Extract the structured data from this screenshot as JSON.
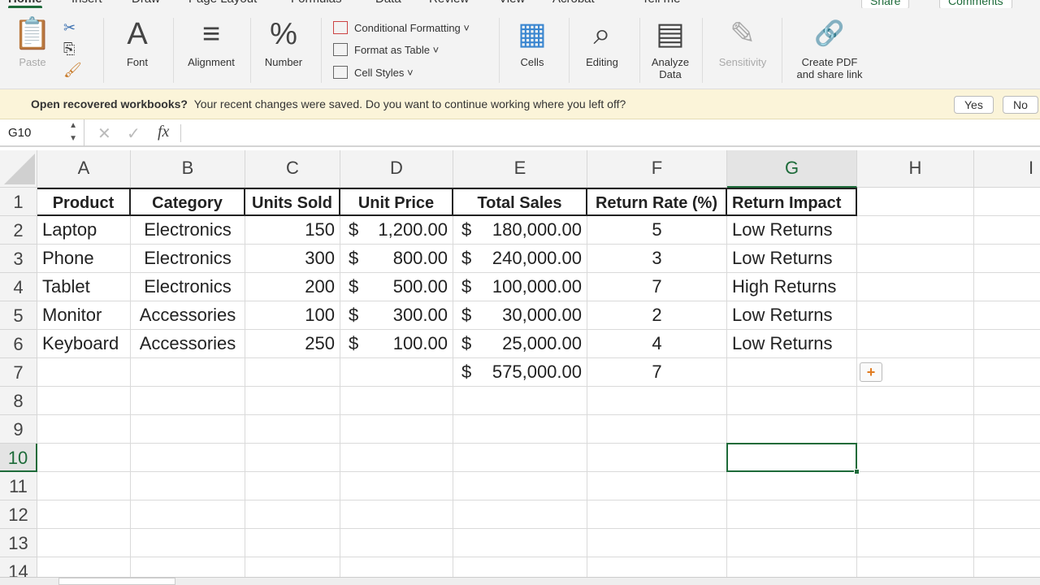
{
  "tabs": [
    "Home",
    "Insert",
    "Draw",
    "Page Layout",
    "Formulas",
    "Data",
    "Review",
    "View",
    "Acrobat",
    "Tell me"
  ],
  "share": "Share",
  "comments": "Comments",
  "ribbon": {
    "paste": "Paste",
    "font": "Font",
    "alignment": "Alignment",
    "number": "Number",
    "conditional_formatting": "Conditional Formatting",
    "format_as_table": "Format as Table",
    "cell_styles": "Cell Styles",
    "cells": "Cells",
    "editing": "Editing",
    "analyze_data": "Analyze\nData",
    "sensitivity": "Sensitivity",
    "create_pdf": "Create PDF\nand share link"
  },
  "notice": {
    "title": "Open recovered workbooks?",
    "text": "Your recent changes were saved. Do you want to continue working where you left off?",
    "yes": "Yes",
    "no": "No"
  },
  "namebox": "G10",
  "fx": "fx",
  "columns": [
    "A",
    "B",
    "C",
    "D",
    "E",
    "F",
    "G",
    "H",
    "I"
  ],
  "selected_cell": "G10",
  "rows": [
    [
      {
        "v": "Product",
        "b": 1,
        "a": "c"
      },
      {
        "v": "Category",
        "b": 1,
        "a": "c"
      },
      {
        "v": "Units Sold",
        "b": 1,
        "a": "c"
      },
      {
        "v": "Unit Price",
        "b": 1,
        "a": "c"
      },
      {
        "v": "Total Sales",
        "b": 1,
        "a": "c"
      },
      {
        "v": "Return Rate (%)",
        "b": 1,
        "a": "c"
      },
      {
        "v": "Return Impact",
        "b": 1,
        "a": "l"
      }
    ],
    [
      {
        "v": "Laptop"
      },
      {
        "v": "Electronics",
        "a": "c"
      },
      {
        "v": "150",
        "a": "r"
      },
      {
        "cur": "$",
        "v": "1,200.00",
        "a": "r"
      },
      {
        "cur": "$",
        "v": "180,000.00",
        "a": "r"
      },
      {
        "v": "5",
        "a": "c"
      },
      {
        "v": "Low Returns"
      }
    ],
    [
      {
        "v": "Phone"
      },
      {
        "v": "Electronics",
        "a": "c"
      },
      {
        "v": "300",
        "a": "r"
      },
      {
        "cur": "$",
        "v": "800.00",
        "a": "r"
      },
      {
        "cur": "$",
        "v": "240,000.00",
        "a": "r"
      },
      {
        "v": "3",
        "a": "c"
      },
      {
        "v": "Low Returns"
      }
    ],
    [
      {
        "v": "Tablet"
      },
      {
        "v": "Electronics",
        "a": "c"
      },
      {
        "v": "200",
        "a": "r"
      },
      {
        "cur": "$",
        "v": "500.00",
        "a": "r"
      },
      {
        "cur": "$",
        "v": "100,000.00",
        "a": "r"
      },
      {
        "v": "7",
        "a": "c"
      },
      {
        "v": "High Returns"
      }
    ],
    [
      {
        "v": "Monitor"
      },
      {
        "v": "Accessories",
        "a": "c"
      },
      {
        "v": "100",
        "a": "r"
      },
      {
        "cur": "$",
        "v": "300.00",
        "a": "r"
      },
      {
        "cur": "$",
        "v": "30,000.00",
        "a": "r"
      },
      {
        "v": "2",
        "a": "c"
      },
      {
        "v": "Low Returns"
      }
    ],
    [
      {
        "v": "Keyboard"
      },
      {
        "v": "Accessories",
        "a": "c"
      },
      {
        "v": "250",
        "a": "r"
      },
      {
        "cur": "$",
        "v": "100.00",
        "a": "r"
      },
      {
        "cur": "$",
        "v": "25,000.00",
        "a": "r"
      },
      {
        "v": "4",
        "a": "c"
      },
      {
        "v": "Low Returns"
      }
    ],
    [
      {
        "v": ""
      },
      {
        "v": ""
      },
      {
        "v": ""
      },
      {
        "v": ""
      },
      {
        "cur": "$",
        "v": "575,000.00",
        "a": "r"
      },
      {
        "v": "7",
        "a": "c"
      },
      {
        "v": ""
      }
    ]
  ],
  "row_count": 14
}
